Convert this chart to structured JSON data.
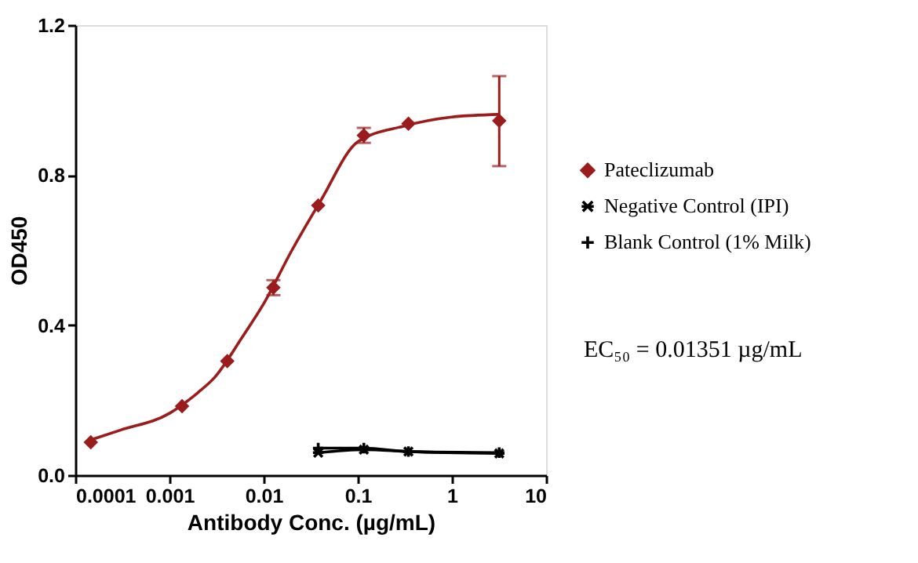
{
  "chart_data": {
    "type": "scatter",
    "xlabel": "Antibody Conc. (µg/mL)",
    "ylabel": "OD450",
    "log": "x",
    "xlim": [
      0.0001,
      10
    ],
    "xticks": [
      0.0001,
      0.001,
      0.01,
      0.1,
      1,
      10
    ],
    "ylim": [
      0,
      1.2
    ],
    "yticks": [
      {
        "value": 0,
        "label": "0.0"
      },
      {
        "value": 0.4,
        "label": "0.4"
      },
      {
        "value": 0.8,
        "label": "0.8"
      },
      {
        "value": 1.2,
        "label": "1.2"
      }
    ],
    "grid": false,
    "legend": "right",
    "annotations": [
      "EC₅₀ = 0.01351 µg/mL"
    ],
    "series": [
      {
        "name": "Pateclizumab",
        "marker": "diamond",
        "color": "#9b1c1c",
        "x": [
          0.000146,
          0.00136,
          0.00411,
          0.0127,
          0.038,
          0.116,
          0.345,
          3.18
        ],
        "values": [
          0.088,
          0.184,
          0.304,
          0.5,
          0.719,
          0.906,
          0.937,
          0.945
        ],
        "errors": [
          null,
          null,
          null,
          [
            0.48,
            0.52
          ],
          null,
          [
            0.886,
            0.926
          ],
          null,
          [
            0.824,
            1.064
          ]
        ]
      },
      {
        "name": "Negative Control (IPI)",
        "type": "line",
        "marker": "cross",
        "color": "#000000",
        "x": [
          0.038,
          0.116,
          0.345,
          3.18
        ],
        "values": [
          0.06,
          0.068,
          0.063,
          0.058
        ]
      },
      {
        "name": "Blank Control (1% Milk)",
        "type": "line",
        "marker": "cross",
        "color": "#000000",
        "x": [
          0.038,
          0.116,
          0.345,
          3.18
        ],
        "values": [
          0.072,
          0.072,
          0.063,
          0.06
        ]
      },
      {
        "type": "line",
        "marker": "none",
        "color": "#9b1c1c",
        "x": [
          0.00015,
          0.0003,
          0.001,
          0.002,
          0.003,
          0.006,
          0.01,
          0.02,
          0.04,
          0.1,
          0.3,
          1,
          3.18
        ],
        "values": [
          0.095,
          0.12,
          0.165,
          0.22,
          0.26,
          0.37,
          0.457,
          0.6,
          0.73,
          0.889,
          0.93,
          0.955,
          0.962
        ]
      }
    ]
  }
}
